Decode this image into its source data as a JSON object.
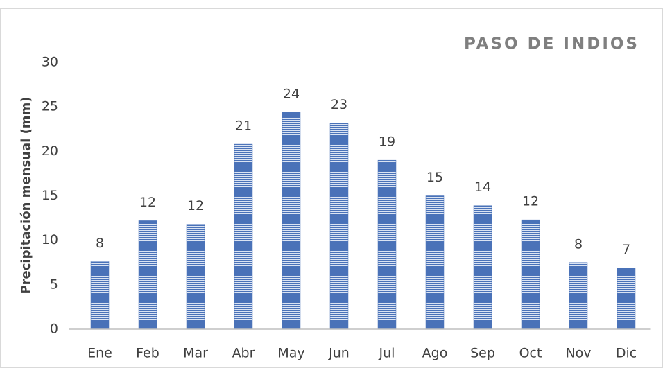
{
  "chart_data": {
    "type": "bar",
    "title": "PASO DE INDIOS",
    "ylabel": "Precipitación mensual (mm)",
    "categories": [
      "Ene",
      "Feb",
      "Mar",
      "Abr",
      "May",
      "Jun",
      "Jul",
      "Ago",
      "Sep",
      "Oct",
      "Nov",
      "Dic"
    ],
    "values": [
      7.6,
      12.2,
      11.8,
      20.8,
      24.4,
      23.2,
      19.0,
      15.0,
      13.9,
      12.3,
      7.5,
      6.9
    ],
    "value_labels": [
      "8",
      "12",
      "12",
      "21",
      "24",
      "23",
      "19",
      "15",
      "14",
      "12",
      "8",
      "7"
    ],
    "color": "#4a72b8",
    "ylim": [
      0,
      30
    ],
    "yticks": [
      0,
      5,
      10,
      15,
      20,
      25,
      30
    ],
    "grid": false
  }
}
